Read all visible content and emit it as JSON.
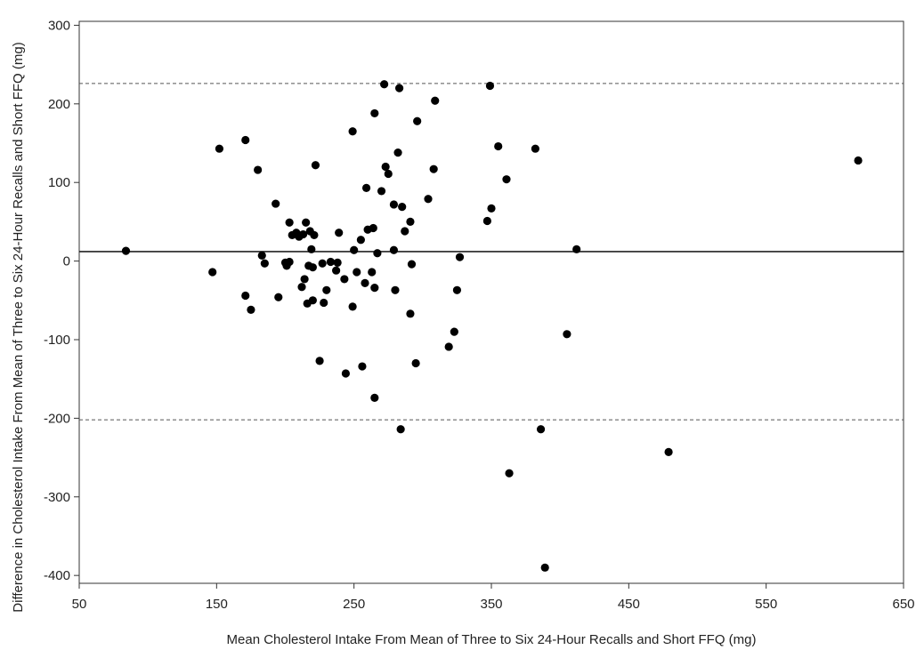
{
  "chart_data": {
    "type": "scatter",
    "title": "",
    "xlabel": "Mean Cholesterol Intake From Mean of Three to Six 24-Hour Recalls and Short FFQ (mg)",
    "ylabel": "Difference in Cholesterol Intake From Mean of Three to Six 24-Hour Recalls and Short FFQ (mg)",
    "xlim": [
      50,
      650
    ],
    "ylim": [
      -410,
      305
    ],
    "xticks": [
      "50",
      "150",
      "250",
      "350",
      "450",
      "550",
      "650"
    ],
    "yticks": [
      "300",
      "200",
      "100",
      "0",
      "-100",
      "-200",
      "-300",
      "-400"
    ],
    "grid": false,
    "reference_lines": {
      "mean_difference": 12,
      "upper_limit": 226,
      "lower_limit": -202
    },
    "point_color": "#000000",
    "points": [
      [
        84,
        13
      ],
      [
        147,
        -14
      ],
      [
        152,
        143
      ],
      [
        171,
        154
      ],
      [
        171,
        -44
      ],
      [
        175,
        -62
      ],
      [
        180,
        116
      ],
      [
        183,
        7
      ],
      [
        185,
        -3
      ],
      [
        193,
        73
      ],
      [
        195,
        -46
      ],
      [
        200,
        -2
      ],
      [
        201,
        -6
      ],
      [
        203,
        -1
      ],
      [
        203,
        49
      ],
      [
        205,
        33
      ],
      [
        208,
        36
      ],
      [
        210,
        31
      ],
      [
        212,
        -33
      ],
      [
        213,
        34
      ],
      [
        214,
        -23
      ],
      [
        215,
        49
      ],
      [
        216,
        -54
      ],
      [
        217,
        -6
      ],
      [
        218,
        38
      ],
      [
        219,
        15
      ],
      [
        220,
        -50
      ],
      [
        220,
        -8
      ],
      [
        221,
        33
      ],
      [
        222,
        122
      ],
      [
        225,
        -127
      ],
      [
        227,
        -3
      ],
      [
        228,
        -53
      ],
      [
        230,
        -37
      ],
      [
        233,
        -1
      ],
      [
        237,
        -12
      ],
      [
        238,
        -2
      ],
      [
        239,
        36
      ],
      [
        243,
        -23
      ],
      [
        244,
        -143
      ],
      [
        249,
        165
      ],
      [
        249,
        -58
      ],
      [
        250,
        14
      ],
      [
        252,
        -14
      ],
      [
        255,
        27
      ],
      [
        256,
        -134
      ],
      [
        258,
        -28
      ],
      [
        259,
        93
      ],
      [
        260,
        40
      ],
      [
        263,
        -14
      ],
      [
        264,
        42
      ],
      [
        265,
        -34
      ],
      [
        265,
        -174
      ],
      [
        265,
        188
      ],
      [
        267,
        10
      ],
      [
        270,
        89
      ],
      [
        272,
        225
      ],
      [
        273,
        120
      ],
      [
        275,
        111
      ],
      [
        279,
        14
      ],
      [
        279,
        72
      ],
      [
        280,
        -37
      ],
      [
        282,
        138
      ],
      [
        283,
        220
      ],
      [
        284,
        -214
      ],
      [
        285,
        69
      ],
      [
        287,
        38
      ],
      [
        291,
        -67
      ],
      [
        291,
        50
      ],
      [
        292,
        -4
      ],
      [
        295,
        -130
      ],
      [
        296,
        178
      ],
      [
        304,
        79
      ],
      [
        308,
        117
      ],
      [
        309,
        204
      ],
      [
        319,
        -109
      ],
      [
        323,
        -90
      ],
      [
        325,
        -37
      ],
      [
        327,
        5
      ],
      [
        347,
        51
      ],
      [
        349,
        223
      ],
      [
        350,
        67
      ],
      [
        355,
        146
      ],
      [
        361,
        104
      ],
      [
        363,
        -270
      ],
      [
        382,
        143
      ],
      [
        386,
        -214
      ],
      [
        389,
        -390
      ],
      [
        405,
        -93
      ],
      [
        412,
        15
      ],
      [
        479,
        -243
      ],
      [
        617,
        128
      ]
    ]
  }
}
